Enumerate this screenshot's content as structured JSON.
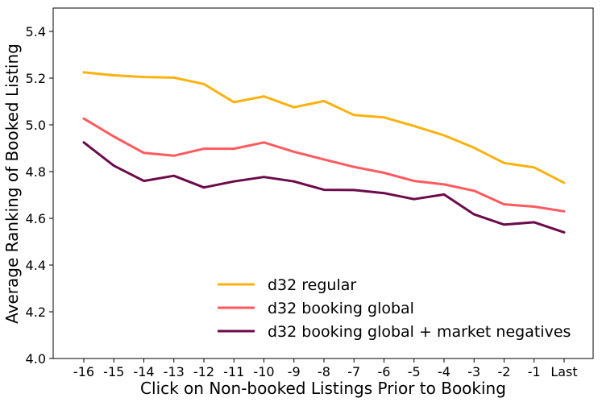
{
  "chart_data": {
    "type": "line",
    "xlabel": "Click on Non-booked Listings Prior to Booking",
    "ylabel": "Average Ranking of Booked Listing",
    "categories": [
      "-16",
      "-15",
      "-14",
      "-13",
      "-12",
      "-11",
      "-10",
      "-9",
      "-8",
      "-7",
      "-6",
      "-5",
      "-4",
      "-3",
      "-2",
      "-1",
      "Last"
    ],
    "ylim": [
      4.0,
      5.5
    ],
    "yticks": [
      "4.0",
      "4.2",
      "4.4",
      "4.6",
      "4.8",
      "5.0",
      "5.2",
      "5.4"
    ],
    "grid": false,
    "legend_position": "bottom-right",
    "series": [
      {
        "name": "d32 regular",
        "color": "#FBB20F",
        "values": [
          5.225,
          5.212,
          5.205,
          5.202,
          5.175,
          5.097,
          5.122,
          5.075,
          5.102,
          5.042,
          5.032,
          4.995,
          4.955,
          4.902,
          4.837,
          4.818,
          4.752
        ]
      },
      {
        "name": "d32 booking global",
        "color": "#FF5A5F",
        "values": [
          5.027,
          4.95,
          4.88,
          4.868,
          4.898,
          4.898,
          4.925,
          4.885,
          4.852,
          4.82,
          4.795,
          4.76,
          4.745,
          4.718,
          4.66,
          4.65,
          4.63
        ]
      },
      {
        "name": "d32 booking global + market negatives",
        "color": "#6C0A4B",
        "values": [
          4.925,
          4.825,
          4.76,
          4.782,
          4.732,
          4.758,
          4.777,
          4.758,
          4.722,
          4.721,
          4.708,
          4.682,
          4.702,
          4.617,
          4.573,
          4.583,
          4.54
        ]
      }
    ]
  }
}
